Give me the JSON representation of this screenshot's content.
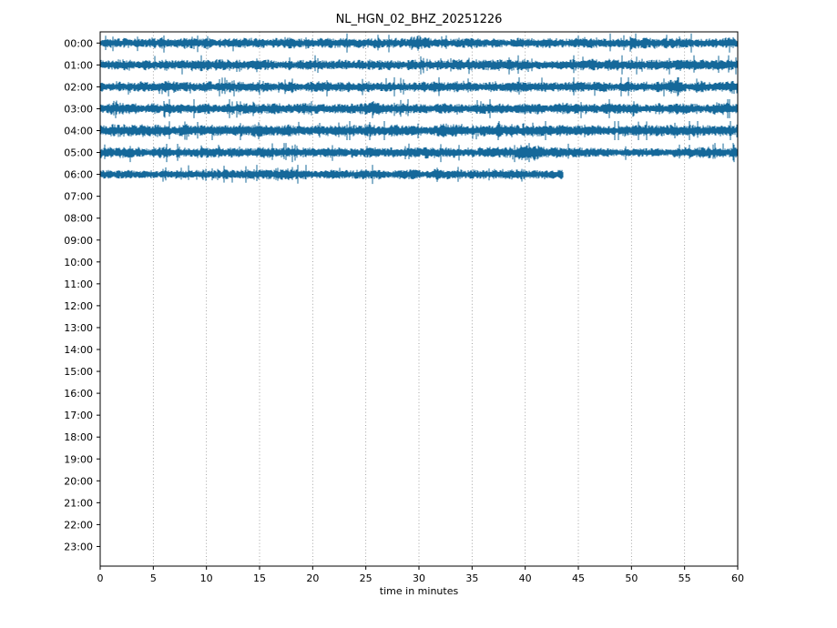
{
  "chart_data": {
    "type": "line",
    "subtype": "seismogram-dayplot",
    "title": "NL_HGN_02_BHZ_20251226",
    "xlabel": "time in minutes",
    "xlim": [
      0,
      60
    ],
    "x_ticks": [
      0,
      5,
      10,
      15,
      20,
      25,
      30,
      35,
      40,
      45,
      50,
      55,
      60
    ],
    "y_labels": [
      "00:00",
      "01:00",
      "02:00",
      "03:00",
      "04:00",
      "05:00",
      "06:00",
      "07:00",
      "08:00",
      "09:00",
      "10:00",
      "11:00",
      "12:00",
      "13:00",
      "14:00",
      "15:00",
      "16:00",
      "17:00",
      "18:00",
      "19:00",
      "20:00",
      "21:00",
      "22:00",
      "23:00"
    ],
    "grid": "vertical-dotted",
    "grid_color": "#8c8c8c",
    "legend": "none",
    "background": "#ffffff",
    "trace_color": "#15689a",
    "traces": [
      {
        "hour": "00:00",
        "start_min": 0,
        "end_min": 60,
        "amplitude": 0.95,
        "bursts": [
          {
            "min": 30,
            "gain": 1.5
          }
        ]
      },
      {
        "hour": "01:00",
        "start_min": 0,
        "end_min": 60,
        "amplitude": 1.0,
        "bursts": [
          {
            "min": 9,
            "gain": 1.35
          }
        ]
      },
      {
        "hour": "02:00",
        "start_min": 0,
        "end_min": 60,
        "amplitude": 0.95,
        "bursts": [
          {
            "min": 54,
            "gain": 1.7
          },
          {
            "min": 59.3,
            "gain": 1.5
          }
        ]
      },
      {
        "hour": "03:00",
        "start_min": 0,
        "end_min": 60,
        "amplitude": 1.0,
        "bursts": [
          {
            "min": 25.5,
            "gain": 1.35
          }
        ]
      },
      {
        "hour": "04:00",
        "start_min": 0,
        "end_min": 60,
        "amplitude": 1.1,
        "bursts": []
      },
      {
        "hour": "05:00",
        "start_min": 0,
        "end_min": 60,
        "amplitude": 1.0,
        "bursts": [
          {
            "min": 40.3,
            "gain": 1.9
          },
          {
            "min": 50,
            "gain": 0.78,
            "width": 4
          }
        ]
      },
      {
        "hour": "06:00",
        "start_min": 0,
        "end_min": 43.5,
        "amplitude": 0.9,
        "bursts": [
          {
            "min": 17.5,
            "gain": 1.5
          }
        ]
      }
    ]
  }
}
